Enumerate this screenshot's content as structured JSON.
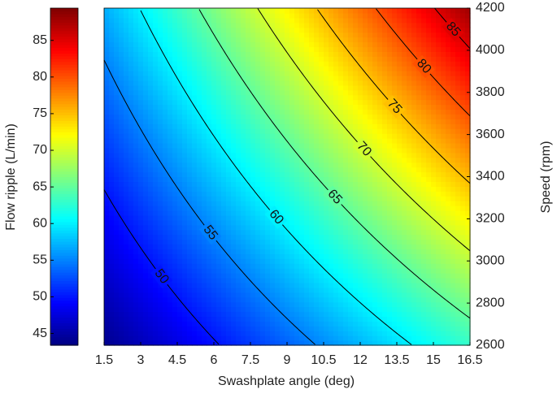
{
  "chart_data": {
    "type": "contour",
    "xlabel": "Swashplate angle (deg)",
    "ylabel": "Speed (rpm)",
    "colorbar_label": "Flow ripple (L/min)",
    "colormap": "jet",
    "x": [
      1.5,
      9,
      16.5
    ],
    "y": [
      2600,
      3400,
      4200
    ],
    "z": [
      [
        44,
        53.5,
        63
      ],
      [
        50.5,
        63,
        75.5
      ],
      [
        57,
        72.5,
        88
      ]
    ],
    "levels": [
      50,
      55,
      60,
      65,
      70,
      75,
      80,
      85
    ],
    "line_color": "#000000",
    "xlim": [
      1.5,
      16.5
    ],
    "xticks": [
      1.5,
      3,
      4.5,
      6,
      7.5,
      9,
      10.5,
      12,
      13.5,
      15,
      16.5
    ],
    "ylim": [
      2600,
      4200
    ],
    "yticks": [
      2600,
      2800,
      3000,
      3200,
      3400,
      3600,
      3800,
      4000,
      4200
    ],
    "clim": [
      43.4,
      89.4
    ],
    "cticks": [
      45,
      50,
      55,
      60,
      65,
      70,
      75,
      80,
      85
    ]
  }
}
